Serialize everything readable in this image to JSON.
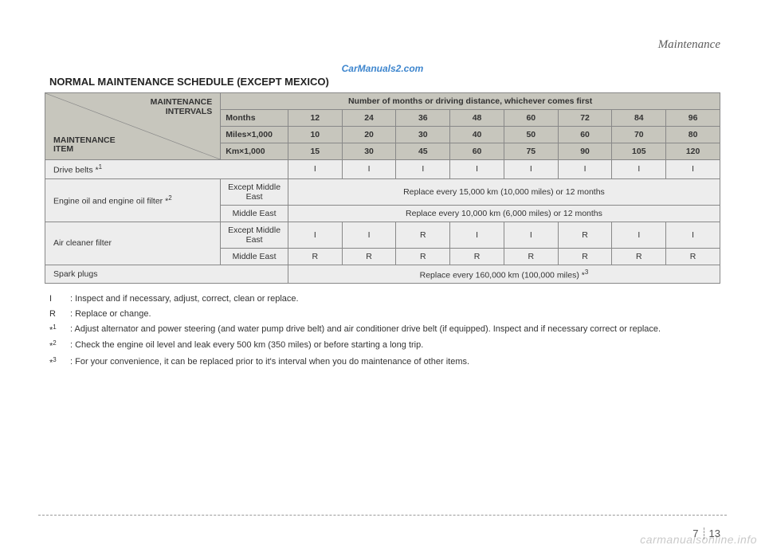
{
  "breadcrumb": "Maintenance",
  "watermark_top": "CarManuals2.com",
  "watermark_bottom": "carmanualsonline.info",
  "section_title": "NORMAL MAINTENANCE SCHEDULE (EXCEPT MEXICO)",
  "corner": {
    "upper": "MAINTENANCE INTERVALS",
    "lower": "MAINTENANCE ITEM"
  },
  "span_header": "Number of months or driving distance, whichever comes first",
  "unit_rows": [
    {
      "label": "Months",
      "values": [
        "12",
        "24",
        "36",
        "48",
        "60",
        "72",
        "84",
        "96"
      ]
    },
    {
      "label": "Miles×1,000",
      "values": [
        "10",
        "20",
        "30",
        "40",
        "50",
        "60",
        "70",
        "80"
      ]
    },
    {
      "label": "Km×1,000",
      "values": [
        "15",
        "30",
        "45",
        "60",
        "75",
        "90",
        "105",
        "120"
      ]
    }
  ],
  "rows": [
    {
      "label": "Drive belts *",
      "label_sup": "1",
      "cells": [
        "I",
        "I",
        "I",
        "I",
        "I",
        "I",
        "I",
        "I"
      ]
    },
    {
      "label": "Engine oil and engine oil filter *",
      "label_sup": "2",
      "subrows": [
        {
          "sublabel": "Except Middle East",
          "merged": "Replace every 15,000 km (10,000 miles) or 12 months"
        },
        {
          "sublabel": "Middle East",
          "merged": "Replace every 10,000 km (6,000 miles) or 12 months"
        }
      ]
    },
    {
      "label": "Air cleaner filter",
      "subrows": [
        {
          "sublabel": "Except Middle East",
          "cells": [
            "I",
            "I",
            "R",
            "I",
            "I",
            "R",
            "I",
            "I"
          ]
        },
        {
          "sublabel": "Middle East",
          "cells": [
            "R",
            "R",
            "R",
            "R",
            "R",
            "R",
            "R",
            "R"
          ]
        }
      ]
    },
    {
      "label": "Spark plugs",
      "merged": "Replace every 160,000 km (100,000 miles) *",
      "merged_sup": "3"
    }
  ],
  "notes": [
    {
      "key": "I",
      "text": ": Inspect and if necessary, adjust, correct, clean or replace."
    },
    {
      "key": "R",
      "text": ": Replace or change."
    },
    {
      "key": "*",
      "sup": "1",
      "text": ": Adjust alternator and power steering (and water pump drive belt) and air conditioner drive belt (if equipped). Inspect and if necessary correct or replace."
    },
    {
      "key": "*",
      "sup": "2",
      "text": ": Check the engine oil level and leak every 500 km (350 miles) or before starting a long trip."
    },
    {
      "key": "*",
      "sup": "3",
      "text": ": For your convenience, it can be replaced prior to it's interval when you do maintenance of other items."
    }
  ],
  "page": {
    "section": "7",
    "number": "13"
  },
  "colors": {
    "header_bg": "#c7c6bd",
    "cell_bg": "#ededed",
    "border": "#888888",
    "watermark_top": "#3e86ce"
  }
}
